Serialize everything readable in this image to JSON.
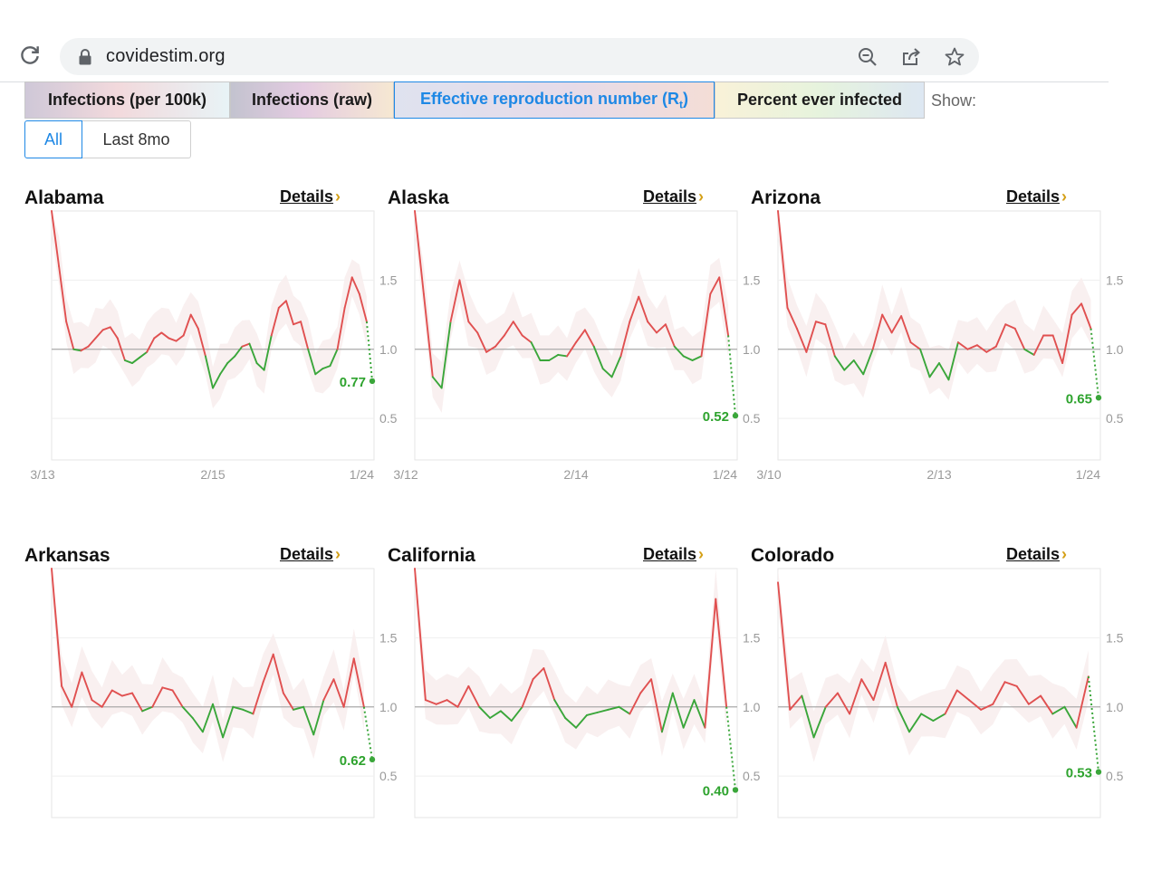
{
  "browser": {
    "url": "covidestim.org",
    "icons": [
      "reload-icon",
      "lock-icon",
      "zoom-out-icon",
      "share-icon",
      "star-icon"
    ]
  },
  "tabs": [
    {
      "label": "Infections (per 100k)"
    },
    {
      "label": "Infections (raw)"
    },
    {
      "label": "Effective reproduction number (R",
      "sub": "t",
      "suffix": ")",
      "active": true
    },
    {
      "label": "Percent ever infected"
    }
  ],
  "show_label": "Show:",
  "range": {
    "all": "All",
    "last8": "Last 8mo",
    "selected": "All"
  },
  "details_label": "Details",
  "colors": {
    "above": "#e05050",
    "below": "#3aa63a",
    "band_above": "#fbe5e5",
    "band_below": "#e6f5e2",
    "baseline": "#aaaaaa",
    "accent": "#1e88e5"
  },
  "states": [
    {
      "name": "Alabama",
      "ticks": [
        "3/13",
        "2/15",
        "1/24"
      ],
      "yticks": [
        "1.5",
        "1.0",
        "0.5"
      ],
      "end_value": "0.77"
    },
    {
      "name": "Alaska",
      "ticks": [
        "3/12",
        "2/14",
        "1/24"
      ],
      "yticks": [
        "1.5",
        "1.0",
        "0.5"
      ],
      "end_value": "0.52"
    },
    {
      "name": "Arizona",
      "ticks": [
        "3/10",
        "2/13",
        "1/24"
      ],
      "yticks": [
        "1.5",
        "1.0",
        "0.5"
      ],
      "end_value": "0.65"
    },
    {
      "name": "Arkansas",
      "ticks": [],
      "yticks": [
        "1.5",
        "1.0",
        "0.5"
      ],
      "end_value": "0.62"
    },
    {
      "name": "California",
      "ticks": [],
      "yticks": [
        "1.5",
        "1.0",
        "0.5"
      ],
      "end_value": "0.40"
    },
    {
      "name": "Colorado",
      "ticks": [],
      "yticks": [
        "1.5",
        "1.0",
        "0.5"
      ],
      "end_value": "0.53"
    }
  ],
  "chart_data": [
    {
      "type": "line",
      "title": "Alabama",
      "ylim": [
        0.2,
        2.0
      ],
      "series": [
        {
          "values": [
            2.0,
            1.6,
            1.2,
            1.0,
            0.99,
            1.02,
            1.08,
            1.14,
            1.16,
            1.08,
            0.92,
            0.9,
            0.94,
            0.98,
            1.08,
            1.12,
            1.08,
            1.06,
            1.1,
            1.25,
            1.15,
            0.95,
            0.72,
            0.82,
            0.9,
            0.95,
            1.02,
            1.04,
            0.9,
            0.85,
            1.1,
            1.3,
            1.35,
            1.18,
            1.2,
            1.0,
            0.82,
            0.86,
            0.88,
            1.0,
            1.3,
            1.52,
            1.4,
            1.2,
            0.77
          ]
        }
      ]
    },
    {
      "type": "line",
      "title": "Alaska",
      "ylim": [
        0.2,
        2.0
      ],
      "series": [
        {
          "values": [
            2.0,
            1.4,
            0.8,
            0.72,
            1.2,
            1.5,
            1.2,
            1.12,
            0.98,
            1.02,
            1.1,
            1.2,
            1.1,
            1.05,
            0.92,
            0.92,
            0.96,
            0.95,
            1.05,
            1.14,
            1.02,
            0.86,
            0.8,
            0.95,
            1.2,
            1.38,
            1.2,
            1.12,
            1.18,
            1.02,
            0.95,
            0.92,
            0.95,
            1.4,
            1.52,
            1.1,
            0.52
          ]
        }
      ]
    },
    {
      "type": "line",
      "title": "Arizona",
      "ylim": [
        0.2,
        2.0
      ],
      "series": [
        {
          "values": [
            2.0,
            1.3,
            1.15,
            0.98,
            1.2,
            1.18,
            0.95,
            0.85,
            0.92,
            0.82,
            1.0,
            1.25,
            1.12,
            1.24,
            1.05,
            1.0,
            0.8,
            0.9,
            0.78,
            1.05,
            1.0,
            1.03,
            0.98,
            1.02,
            1.18,
            1.15,
            1.0,
            0.96,
            1.1,
            1.1,
            0.9,
            1.25,
            1.33,
            1.15,
            0.65
          ]
        }
      ]
    },
    {
      "type": "line",
      "title": "Arkansas",
      "ylim": [
        0.2,
        2.0
      ],
      "series": [
        {
          "values": [
            2.0,
            1.15,
            1.0,
            1.25,
            1.05,
            1.0,
            1.12,
            1.08,
            1.1,
            0.97,
            1.0,
            1.14,
            1.12,
            1.0,
            0.92,
            0.82,
            1.02,
            0.78,
            1.0,
            0.98,
            0.95,
            1.18,
            1.38,
            1.1,
            0.98,
            1.0,
            0.8,
            1.05,
            1.2,
            1.0,
            1.35,
            1.0,
            0.62
          ]
        }
      ]
    },
    {
      "type": "line",
      "title": "California",
      "ylim": [
        0.2,
        2.0
      ],
      "series": [
        {
          "values": [
            2.0,
            1.05,
            1.02,
            1.05,
            1.0,
            1.15,
            1.0,
            0.92,
            0.97,
            0.9,
            1.0,
            1.2,
            1.28,
            1.05,
            0.92,
            0.85,
            0.94,
            0.96,
            0.98,
            1.0,
            0.95,
            1.1,
            1.2,
            0.82,
            1.1,
            0.85,
            1.05,
            0.85,
            1.78,
            1.0,
            0.4
          ]
        }
      ]
    },
    {
      "type": "line",
      "title": "Colorado",
      "ylim": [
        0.2,
        2.0
      ],
      "series": [
        {
          "values": [
            1.9,
            0.98,
            1.08,
            0.78,
            1.0,
            1.1,
            0.95,
            1.2,
            1.05,
            1.32,
            1.0,
            0.82,
            0.95,
            0.9,
            0.95,
            1.12,
            1.05,
            0.98,
            1.02,
            1.18,
            1.15,
            1.02,
            1.08,
            0.95,
            1.0,
            0.85,
            1.22,
            0.53
          ]
        }
      ]
    }
  ]
}
